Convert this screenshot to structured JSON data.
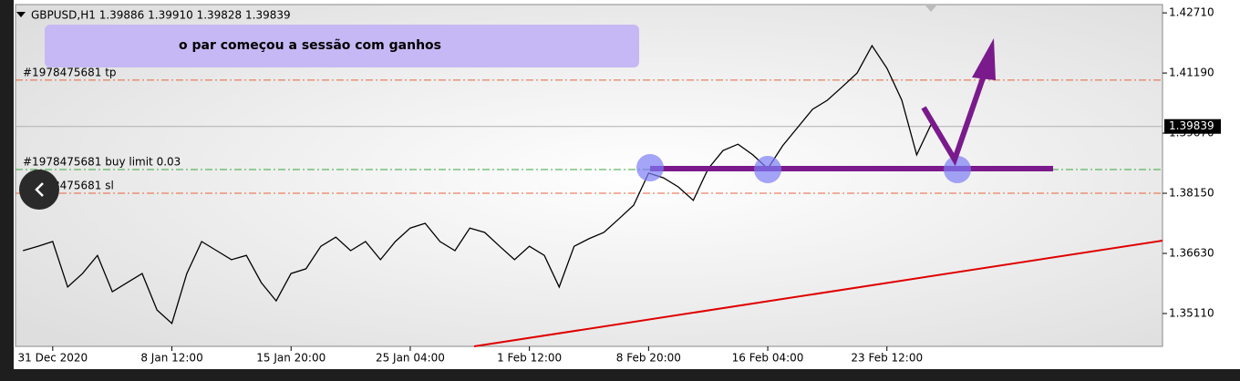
{
  "chart_data": {
    "type": "line",
    "title": "GBPUSD,H1  1.39886 1.39910 1.39828 1.39839",
    "annotation": "o par começou a sessão com ganhos",
    "categories": [
      null,
      null,
      "31 Dec 2020",
      null,
      null,
      null,
      null,
      null,
      null,
      null,
      "8 Jan 12:00",
      null,
      null,
      null,
      null,
      null,
      null,
      null,
      "15 Jan 20:00",
      null,
      null,
      null,
      null,
      null,
      null,
      null,
      "25 Jan 04:00",
      null,
      null,
      null,
      null,
      null,
      null,
      null,
      "1 Feb 12:00",
      null,
      null,
      null,
      null,
      null,
      null,
      null,
      "8 Feb 20:00",
      null,
      null,
      null,
      null,
      null,
      null,
      null,
      "16 Feb 04:00",
      null,
      null,
      null,
      null,
      null,
      null,
      null,
      "23 Feb 12:00",
      null,
      null,
      null,
      null,
      null,
      null,
      null,
      null,
      null,
      null,
      null,
      null,
      null,
      null,
      null,
      null,
      null,
      null
    ],
    "values": [
      1.367,
      1.3681,
      1.3693,
      1.3578,
      1.3612,
      1.3658,
      1.3566,
      1.3589,
      1.3612,
      1.352,
      1.3486,
      1.3612,
      1.3693,
      1.367,
      1.3647,
      1.3658,
      1.3589,
      1.3543,
      1.3612,
      1.3624,
      1.3681,
      1.3704,
      1.367,
      1.3693,
      1.3647,
      1.3693,
      1.3727,
      1.3739,
      1.3693,
      1.367,
      1.3727,
      1.3716,
      1.3681,
      1.3647,
      1.3681,
      1.3658,
      1.3578,
      1.3681,
      1.37,
      1.3716,
      1.375,
      1.3785,
      1.3866,
      1.3854,
      1.3831,
      1.3797,
      1.3877,
      1.3923,
      1.3939,
      1.3912,
      1.3877,
      1.3935,
      1.3981,
      1.4027,
      1.405,
      1.4084,
      1.4119,
      1.4188,
      1.4131,
      1.405,
      1.3912,
      1.3992,
      null,
      null,
      null,
      null,
      null,
      null,
      null,
      null,
      null,
      null,
      null,
      null,
      null,
      null,
      null
    ],
    "color": "#000000",
    "ylim": [
      1.3428,
      1.4292
    ],
    "yticks": [
      {
        "value": 1.4271,
        "label": "1.42710"
      },
      {
        "value": 1.4119,
        "label": "1.41190"
      },
      {
        "value": 1.3967,
        "label": "1.39670"
      },
      {
        "value": 1.3815,
        "label": "1.38150"
      },
      {
        "value": 1.3663,
        "label": "1.36630"
      },
      {
        "value": 1.3511,
        "label": "1.35110"
      }
    ],
    "last_price": {
      "value": 1.39839,
      "label": "1.39839"
    },
    "levels": [
      {
        "label": "#1978475681 tp",
        "value": 1.4101,
        "color": "#e8643c"
      },
      {
        "label": "#1978475681 buy limit 0.03",
        "value": 1.3875,
        "color": "#3aa83a"
      },
      {
        "label": "#1978475681 sl",
        "value": 1.3815,
        "color": "#e8643c"
      }
    ]
  }
}
